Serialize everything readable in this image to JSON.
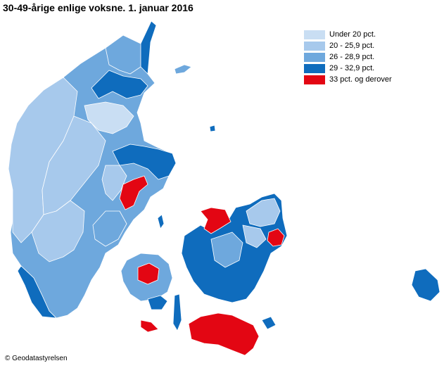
{
  "title": "30-49-årige enlige voksne. 1. januar 2016",
  "legend": {
    "items": [
      {
        "label": "Under 20 pct.",
        "color": "#c9def3"
      },
      {
        "label": "20 - 25,9 pct.",
        "color": "#a7c9ec"
      },
      {
        "label": "26 - 28,9 pct.",
        "color": "#6ea8dd"
      },
      {
        "label": "29 - 32,9 pct.",
        "color": "#0f6cbd"
      },
      {
        "label": "33 pct. og derover",
        "color": "#e30613"
      }
    ]
  },
  "copyright": "© Geodatastyrelsen",
  "colors": {
    "border": "#ffffff",
    "background": "#ffffff"
  }
}
